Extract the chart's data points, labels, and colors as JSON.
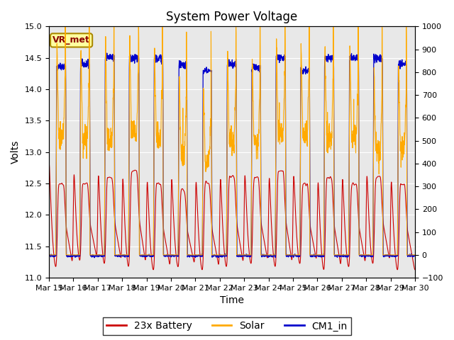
{
  "title": "System Power Voltage",
  "xlabel": "Time",
  "ylabel": "Volts",
  "ylim_left": [
    11.0,
    15.0
  ],
  "ylim_right": [
    -100,
    1000
  ],
  "yticks_left": [
    11.0,
    11.5,
    12.0,
    12.5,
    13.0,
    13.5,
    14.0,
    14.5,
    15.0
  ],
  "yticks_right": [
    -100,
    0,
    100,
    200,
    300,
    400,
    500,
    600,
    700,
    800,
    900,
    1000
  ],
  "xtick_labels": [
    "Mar 15",
    "Mar 16",
    "Mar 17",
    "Mar 18",
    "Mar 19",
    "Mar 20",
    "Mar 21",
    "Mar 22",
    "Mar 23",
    "Mar 24",
    "Mar 25",
    "Mar 26",
    "Mar 27",
    "Mar 28",
    "Mar 29",
    "Mar 30"
  ],
  "vr_met_label": "VR_met",
  "legend_entries": [
    "23x Battery",
    "Solar",
    "CM1_in"
  ],
  "battery_color": "#cc0000",
  "solar_color": "#ffaa00",
  "cm1_color": "#0000cc",
  "background_color": "#e8e8e8",
  "grid_color": "#ffffff",
  "title_fontsize": 12,
  "axis_fontsize": 10,
  "tick_fontsize": 8,
  "legend_fontsize": 10,
  "n_days": 15,
  "n_pts": 2160
}
